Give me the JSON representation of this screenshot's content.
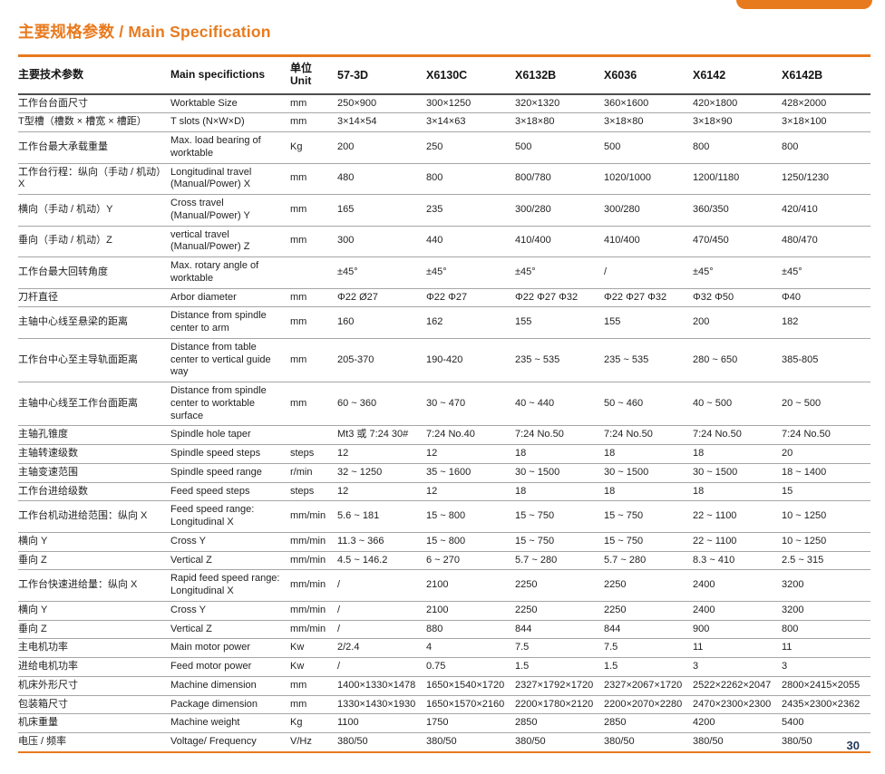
{
  "page": {
    "title_zh": "主要规格参数",
    "title_separator": " / ",
    "title_en": "Main Specification",
    "page_number": "30",
    "accent_color": "#e87a1e"
  },
  "table": {
    "headers": {
      "param_zh": "主要技术参数",
      "param_en": "Main specifictions",
      "unit_zh": "单位",
      "unit_en": "Unit",
      "models": [
        "57-3D",
        "X6130C",
        "X6132B",
        "X6036",
        "X6142",
        "X6142B"
      ]
    },
    "rows": [
      {
        "zh": "工作台台面尺寸",
        "en": "Worktable Size",
        "unit": "mm",
        "values": [
          "250×900",
          "300×1250",
          "320×1320",
          "360×1600",
          "420×1800",
          "428×2000"
        ]
      },
      {
        "zh": "T型槽（槽数 × 槽宽 × 槽距）",
        "en": "T slots (N×W×D)",
        "unit": "mm",
        "values": [
          "3×14×54",
          "3×14×63",
          "3×18×80",
          "3×18×80",
          "3×18×90",
          "3×18×100"
        ]
      },
      {
        "zh": "工作台最大承载重量",
        "en": "Max. load bearing of worktable",
        "unit": "Kg",
        "values": [
          "200",
          "250",
          "500",
          "500",
          "800",
          "800"
        ]
      },
      {
        "zh": "工作台行程：纵向（手动 / 机动）X",
        "en": "Longitudinal travel (Manual/Power) X",
        "unit": "mm",
        "values": [
          "480",
          "800",
          "800/780",
          "1020/1000",
          "1200/1180",
          "1250/1230"
        ]
      },
      {
        "zh": "横向（手动 / 机动）Y",
        "en": "Cross travel (Manual/Power) Y",
        "unit": "mm",
        "values": [
          "165",
          "235",
          "300/280",
          "300/280",
          "360/350",
          "420/410"
        ]
      },
      {
        "zh": "垂向（手动 / 机动）Z",
        "en": "vertical travel (Manual/Power) Z",
        "unit": "mm",
        "values": [
          "300",
          "440",
          "410/400",
          "410/400",
          "470/450",
          "480/470"
        ]
      },
      {
        "zh": "工作台最大回转角度",
        "en": "Max. rotary angle of worktable",
        "unit": "",
        "values": [
          "±45°",
          "±45°",
          "±45°",
          "/",
          "±45°",
          "±45°"
        ]
      },
      {
        "zh": "刀杆直径",
        "en": "Arbor diameter",
        "unit": "mm",
        "values": [
          "Φ22 Ø27",
          "Φ22  Φ27",
          "Φ22 Φ27 Φ32",
          "Φ22 Φ27 Φ32",
          "Φ32  Φ50",
          "Φ40"
        ]
      },
      {
        "zh": "主轴中心线至悬梁的距离",
        "en": "Distance from spindle center to arm",
        "unit": "mm",
        "values": [
          "160",
          "162",
          "155",
          "155",
          "200",
          "182"
        ]
      },
      {
        "zh": "工作台中心至主导轨面距离",
        "en": "Distance from table center to vertical guide way",
        "unit": "mm",
        "values": [
          "205-370",
          "190-420",
          "235 ~ 535",
          "235 ~ 535",
          "280 ~ 650",
          "385-805"
        ]
      },
      {
        "zh": "主轴中心线至工作台面距离",
        "en": "Distance from spindle center to worktable surface",
        "unit": "mm",
        "values": [
          "60 ~ 360",
          "30 ~ 470",
          "40 ~ 440",
          "50 ~ 460",
          "40 ~ 500",
          "20 ~ 500"
        ]
      },
      {
        "zh": "主轴孔锥度",
        "en": "Spindle hole taper",
        "unit": "",
        "values": [
          "Mt3 或 7:24  30#",
          "7:24  No.40",
          "7:24  No.50",
          "7:24  No.50",
          "7:24  No.50",
          "7:24  No.50"
        ]
      },
      {
        "zh": "主轴转速级数",
        "en": "Spindle speed steps",
        "unit": "steps",
        "values": [
          "12",
          "12",
          "18",
          "18",
          "18",
          "20"
        ]
      },
      {
        "zh": "主轴变速范围",
        "en": "Spindle speed range",
        "unit": "r/min",
        "values": [
          "32 ~ 1250",
          "35 ~ 1600",
          "30 ~ 1500",
          "30 ~ 1500",
          "30 ~ 1500",
          "18 ~ 1400"
        ]
      },
      {
        "zh": "工作台进给级数",
        "en": "Feed speed steps",
        "unit": "steps",
        "values": [
          "12",
          "12",
          "18",
          "18",
          "18",
          "15"
        ]
      },
      {
        "zh": "工作台机动进给范围：纵向 X",
        "en": "Feed speed range: Longitudinal X",
        "unit": "mm/min",
        "values": [
          "5.6 ~ 181",
          "15 ~ 800",
          "15 ~ 750",
          "15 ~ 750",
          "22 ~ 1100",
          "10 ~ 1250"
        ]
      },
      {
        "zh": "横向 Y",
        "en": "Cross Y",
        "unit": "mm/min",
        "values": [
          "11.3 ~ 366",
          "15 ~ 800",
          "15 ~ 750",
          "15 ~ 750",
          "22 ~ 1100",
          "10 ~ 1250"
        ]
      },
      {
        "zh": "垂向 Z",
        "en": "Vertical Z",
        "unit": "mm/min",
        "values": [
          "4.5 ~ 146.2",
          "6 ~ 270",
          "5.7 ~ 280",
          "5.7 ~ 280",
          "8.3 ~ 410",
          "2.5 ~ 315"
        ]
      },
      {
        "zh": "工作台快速进给量：纵向 X",
        "en": "Rapid feed speed range: Longitudinal X",
        "unit": "mm/min",
        "values": [
          "/",
          "2100",
          "2250",
          "2250",
          "2400",
          "3200"
        ]
      },
      {
        "zh": "横向 Y",
        "en": "Cross Y",
        "unit": "mm/min",
        "values": [
          "/",
          "2100",
          "2250",
          "2250",
          "2400",
          "3200"
        ]
      },
      {
        "zh": "垂向 Z",
        "en": "Vertical Z",
        "unit": "mm/min",
        "values": [
          "/",
          "880",
          "844",
          "844",
          "900",
          "800"
        ]
      },
      {
        "zh": "主电机功率",
        "en": "Main motor power",
        "unit": "Kw",
        "values": [
          "2/2.4",
          "4",
          "7.5",
          "7.5",
          "11",
          "11"
        ]
      },
      {
        "zh": "进给电机功率",
        "en": "Feed motor power",
        "unit": "Kw",
        "values": [
          "/",
          "0.75",
          "1.5",
          "1.5",
          "3",
          "3"
        ]
      },
      {
        "zh": "机床外形尺寸",
        "en": "Machine dimension",
        "unit": "mm",
        "values": [
          "1400×1330×1478",
          "1650×1540×1720",
          "2327×1792×1720",
          "2327×2067×1720",
          "2522×2262×2047",
          "2800×2415×2055"
        ]
      },
      {
        "zh": "包装箱尺寸",
        "en": "Package dimension",
        "unit": "mm",
        "values": [
          "1330×1430×1930",
          "1650×1570×2160",
          "2200×1780×2120",
          "2200×2070×2280",
          "2470×2300×2300",
          "2435×2300×2362"
        ]
      },
      {
        "zh": "机床重量",
        "en": "Machine weight",
        "unit": "Kg",
        "values": [
          "1100",
          "1750",
          "2850",
          "2850",
          "4200",
          "5400"
        ]
      },
      {
        "zh": "电压 / 频率",
        "en": "Voltage/ Frequency",
        "unit": "V/Hz",
        "values": [
          "380/50",
          "380/50",
          "380/50",
          "380/50",
          "380/50",
          "380/50"
        ]
      }
    ]
  }
}
